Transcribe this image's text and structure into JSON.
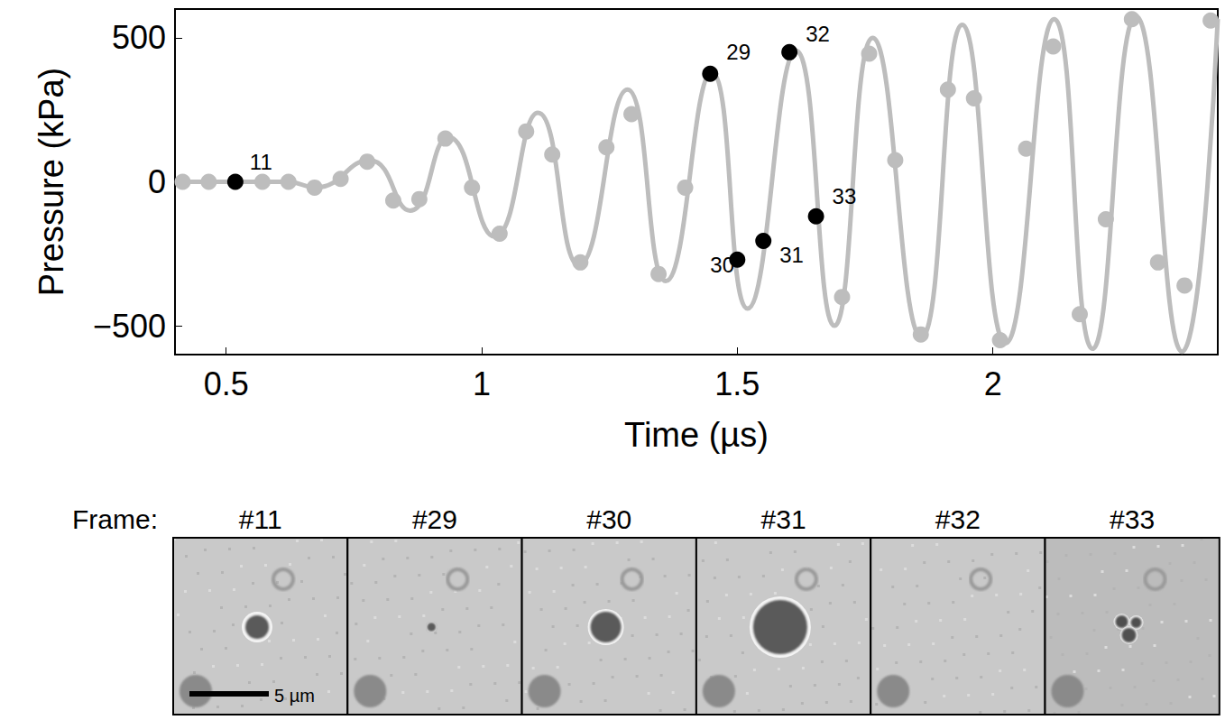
{
  "chart_data": {
    "type": "line",
    "x_label": "Time (µs)",
    "y_label": "Pressure (kPa)",
    "xlim": [
      0.4,
      2.44
    ],
    "ylim": [
      -600,
      600
    ],
    "xticks": [
      0.5,
      1,
      1.5,
      2
    ],
    "yticks": [
      {
        "value": -500,
        "label": "−500"
      },
      0,
      500
    ],
    "grid": false,
    "series": [
      {
        "type": "line",
        "color": "#bdbdbd",
        "line_style": "solid",
        "x": [
          0.4,
          0.62,
          0.675,
          0.78,
          0.86,
          0.935,
          1.025,
          1.11,
          1.19,
          1.285,
          1.36,
          1.45,
          1.52,
          1.615,
          1.69,
          1.765,
          1.86,
          1.94,
          2.025,
          2.12,
          2.195,
          2.28,
          2.37,
          2.44
        ],
        "values": [
          0,
          0,
          -20,
          75,
          -100,
          155,
          -190,
          240,
          -290,
          320,
          -345,
          380,
          -440,
          455,
          -500,
          500,
          -540,
          545,
          -560,
          565,
          -580,
          575,
          -590,
          565
        ]
      },
      {
        "type": "scatter",
        "color": "#bdbdbd",
        "marker": "circle",
        "x": [
          0.415,
          0.466,
          0.571,
          0.622,
          0.673,
          0.724,
          0.776,
          0.827,
          0.878,
          0.929,
          0.981,
          1.035,
          1.087,
          1.138,
          1.193,
          1.244,
          1.293,
          1.346,
          1.398,
          1.705,
          1.758,
          1.809,
          1.859,
          1.912,
          1.963,
          2.014,
          2.065,
          2.118,
          2.17,
          2.221,
          2.272,
          2.323,
          2.375,
          2.426
        ],
        "values": [
          0,
          0,
          0,
          0,
          -20,
          10,
          70,
          -65,
          -60,
          150,
          -20,
          -180,
          175,
          95,
          -280,
          120,
          235,
          -320,
          -20,
          -400,
          445,
          75,
          -530,
          320,
          290,
          -550,
          115,
          470,
          -460,
          -130,
          565,
          -280,
          -360,
          560
        ]
      },
      {
        "type": "scatter",
        "color": "#000000",
        "marker": "circle",
        "x": [
          0.518,
          1.447,
          1.5,
          1.551,
          1.602,
          1.654
        ],
        "values": [
          0,
          375,
          -270,
          -205,
          450,
          -120
        ],
        "labels": [
          "11",
          "29",
          "30",
          "31",
          "32",
          "33"
        ]
      }
    ]
  },
  "frame_strip": {
    "label": "Frame:",
    "frames": [
      "#11",
      "#29",
      "#30",
      "#31",
      "#32",
      "#33"
    ],
    "scale_bar": "5 µm"
  }
}
